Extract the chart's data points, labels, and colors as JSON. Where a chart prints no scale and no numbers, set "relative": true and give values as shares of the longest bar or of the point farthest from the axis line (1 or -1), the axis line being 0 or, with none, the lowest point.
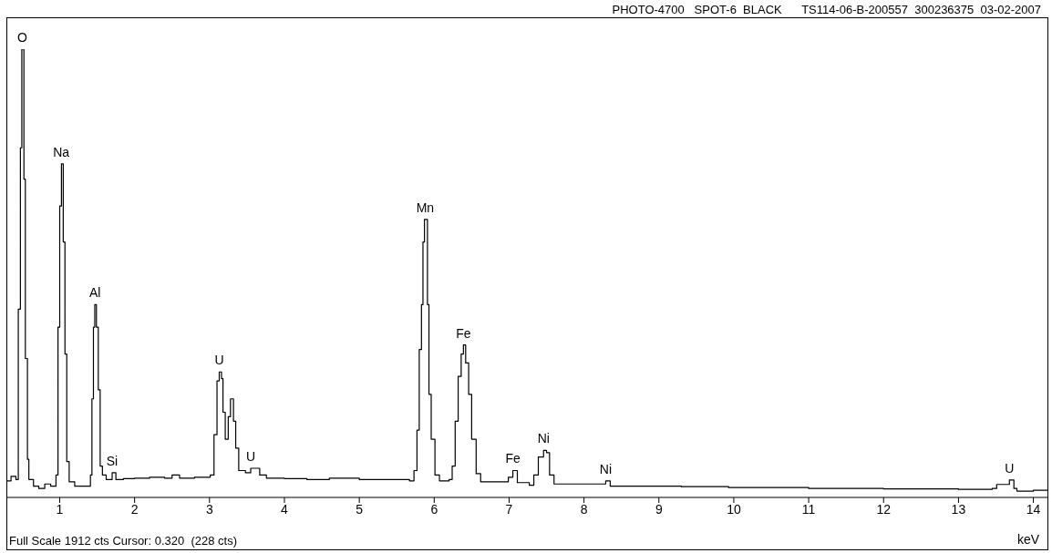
{
  "chart_data": {
    "type": "step",
    "title": "PHOTO-4700   SPOT-6  BLACK      TS114-06-B-200557  300236375  03-02-2007",
    "xlabel": "keV",
    "relative": true,
    "color": "#000000",
    "x": [
      0.3,
      0.35,
      0.415,
      0.447,
      0.475,
      0.494,
      0.518,
      0.522,
      0.541,
      0.569,
      0.588,
      0.65,
      0.72,
      0.8,
      0.88,
      0.95,
      0.977,
      1.0,
      1.023,
      1.047,
      1.07,
      1.094,
      1.126,
      1.2,
      1.3,
      1.41,
      1.43,
      1.45,
      1.468,
      1.49,
      1.515,
      1.54,
      1.57,
      1.62,
      1.7,
      1.75,
      1.85,
      2.0,
      2.2,
      2.4,
      2.5,
      2.6,
      2.8,
      3.01,
      3.06,
      3.1,
      3.13,
      3.16,
      3.18,
      3.21,
      3.25,
      3.28,
      3.32,
      3.35,
      3.39,
      3.48,
      3.55,
      3.67,
      3.76,
      4.0,
      4.3,
      4.6,
      5.0,
      5.3,
      5.67,
      5.73,
      5.77,
      5.8,
      5.83,
      5.85,
      5.87,
      5.89,
      5.91,
      5.93,
      5.96,
      6.01,
      6.07,
      6.2,
      6.24,
      6.28,
      6.32,
      6.36,
      6.39,
      6.42,
      6.46,
      6.5,
      6.56,
      6.62,
      6.89,
      6.99,
      7.05,
      7.11,
      7.27,
      7.33,
      7.39,
      7.46,
      7.5,
      7.54,
      7.6,
      7.9,
      8.29,
      8.35,
      8.72,
      9.3,
      9.93,
      10.5,
      11.0,
      11.5,
      12.0,
      12.5,
      13.0,
      13.45,
      13.51,
      13.62,
      13.68,
      13.74,
      13.78,
      14.0,
      14.2
    ],
    "values": [
      0.037,
      0.047,
      0.04,
      0.42,
      0.78,
      1.0,
      1.0,
      0.71,
      0.31,
      0.085,
      0.04,
      0.025,
      0.02,
      0.03,
      0.025,
      0.05,
      0.38,
      0.65,
      0.744,
      0.57,
      0.32,
      0.08,
      0.035,
      0.025,
      0.025,
      0.05,
      0.22,
      0.38,
      0.43,
      0.38,
      0.24,
      0.07,
      0.05,
      0.04,
      0.055,
      0.04,
      0.042,
      0.043,
      0.045,
      0.043,
      0.05,
      0.043,
      0.045,
      0.05,
      0.14,
      0.26,
      0.28,
      0.265,
      0.19,
      0.13,
      0.18,
      0.22,
      0.17,
      0.11,
      0.06,
      0.055,
      0.065,
      0.05,
      0.043,
      0.042,
      0.04,
      0.043,
      0.04,
      0.04,
      0.037,
      0.06,
      0.15,
      0.33,
      0.43,
      0.57,
      0.62,
      0.62,
      0.43,
      0.23,
      0.13,
      0.05,
      0.037,
      0.04,
      0.07,
      0.17,
      0.27,
      0.32,
      0.34,
      0.3,
      0.23,
      0.13,
      0.053,
      0.035,
      0.035,
      0.045,
      0.06,
      0.033,
      0.027,
      0.05,
      0.09,
      0.105,
      0.1,
      0.05,
      0.03,
      0.03,
      0.037,
      0.025,
      0.025,
      0.024,
      0.022,
      0.022,
      0.02,
      0.02,
      0.019,
      0.019,
      0.018,
      0.02,
      0.029,
      0.029,
      0.039,
      0.02,
      0.014,
      0.016,
      0.016
    ],
    "xlim": [
      0.3,
      14.2
    ],
    "xticks": [
      1,
      2,
      3,
      4,
      5,
      6,
      7,
      8,
      9,
      10,
      11,
      12,
      13,
      14
    ],
    "annotations": [
      {
        "text": "O",
        "x": 0.5,
        "y": 1.0
      },
      {
        "text": "Na",
        "x": 1.02,
        "y": 0.744
      },
      {
        "text": "Al",
        "x": 1.47,
        "y": 0.43
      },
      {
        "text": "Si",
        "x": 1.7,
        "y": 0.055
      },
      {
        "text": "U",
        "x": 3.13,
        "y": 0.28
      },
      {
        "text": "U",
        "x": 3.55,
        "y": 0.065
      },
      {
        "text": "Mn",
        "x": 5.88,
        "y": 0.62
      },
      {
        "text": "Fe",
        "x": 6.39,
        "y": 0.34
      },
      {
        "text": "Fe",
        "x": 7.05,
        "y": 0.06
      },
      {
        "text": "Ni",
        "x": 7.46,
        "y": 0.105
      },
      {
        "text": "Ni",
        "x": 8.29,
        "y": 0.037
      },
      {
        "text": "U",
        "x": 13.68,
        "y": 0.039
      },
      "Full Scale 1912 cts Cursor: 0.320  (228 cts)"
    ]
  }
}
